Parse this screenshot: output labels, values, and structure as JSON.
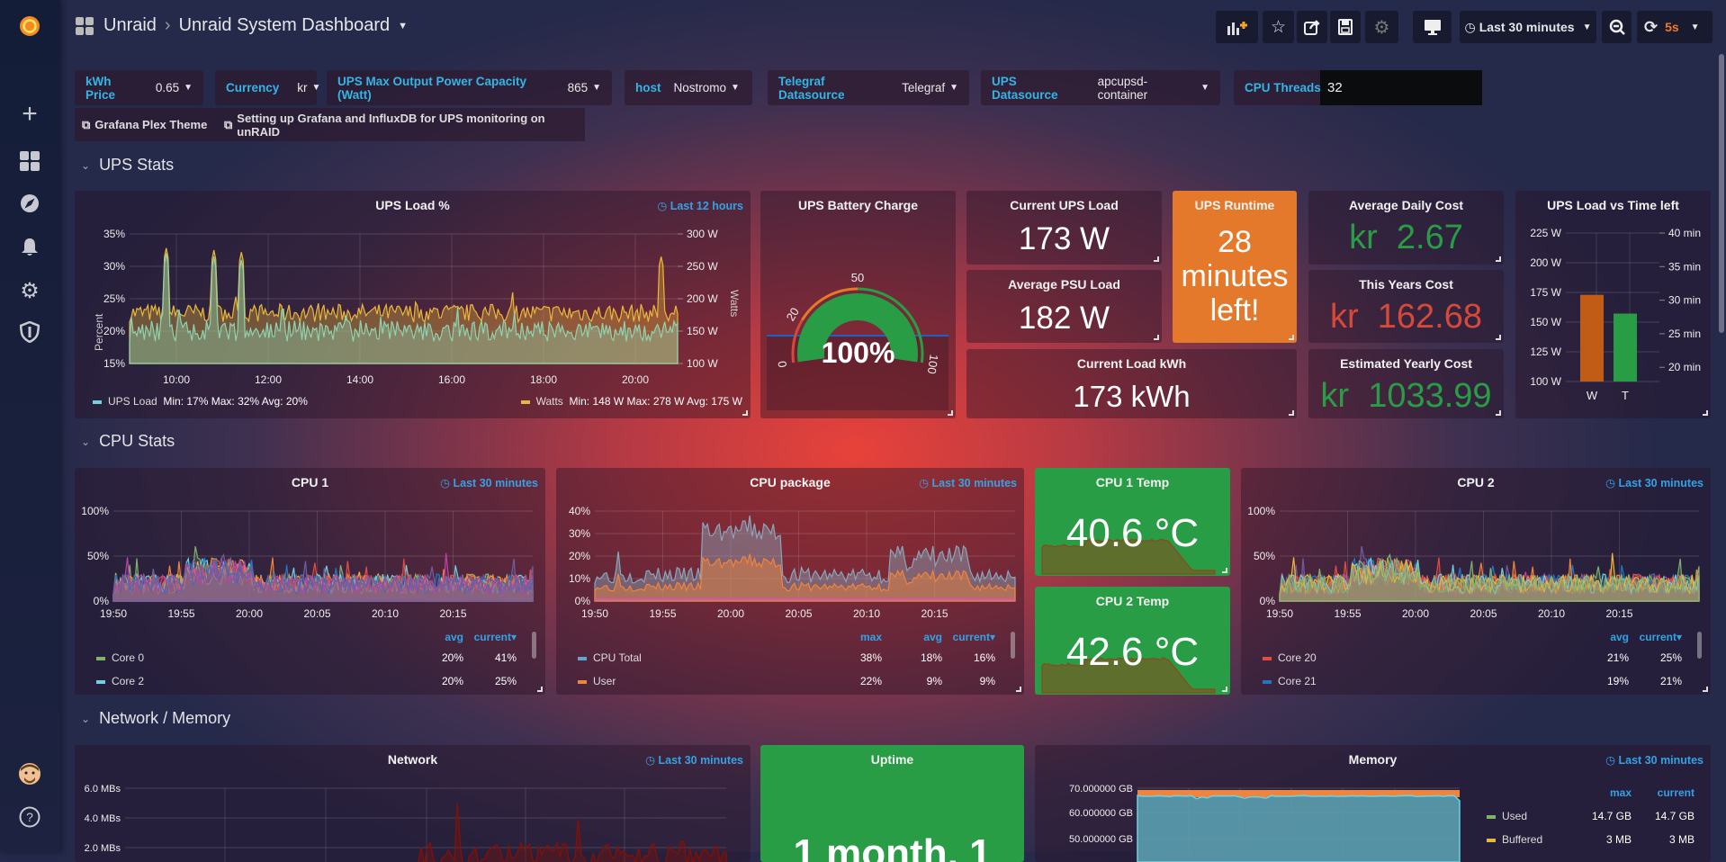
{
  "header": {
    "folder": "Unraid",
    "separator": "›",
    "dashboard_title": "Unraid System Dashboard",
    "time_range": "Last 30 minutes",
    "refresh_interval": "5s"
  },
  "variables": [
    {
      "label": "kWh Price",
      "value": "0.65"
    },
    {
      "label": "Currency",
      "value": "kr"
    },
    {
      "label": "UPS Max Output Power Capacity (Watt)",
      "value": "865"
    },
    {
      "label": "host",
      "value": "Nostromo"
    },
    {
      "label": "Telegraf Datasource",
      "value": "Telegraf"
    },
    {
      "label": "UPS Datasource",
      "value": "apcupsd-container"
    }
  ],
  "cpu_threads": {
    "label": "CPU Threads",
    "value": "32"
  },
  "links": [
    "Grafana Plex Theme",
    "Setting up Grafana and InfluxDB for UPS monitoring on unRAID"
  ],
  "rows": {
    "ups": "UPS Stats",
    "cpu": "CPU Stats",
    "net": "Network / Memory"
  },
  "panels": {
    "ups_load": {
      "title": "UPS Load %",
      "time": "Last 12 hours",
      "y_left_label": "Percent",
      "y_right_label": "Watts",
      "y_left_ticks": [
        "35%",
        "30%",
        "25%",
        "20%",
        "15%"
      ],
      "y_right_ticks": [
        "300 W",
        "250 W",
        "200 W",
        "150 W",
        "100 W"
      ],
      "x_ticks": [
        "10:00",
        "12:00",
        "14:00",
        "16:00",
        "18:00",
        "20:00"
      ],
      "legend": [
        {
          "name": "UPS Load",
          "stats": "Min: 17%  Max: 32%  Avg: 20%",
          "color": "#6ed0e0"
        },
        {
          "name": "Watts",
          "stats": "Min: 148 W  Max: 278 W  Avg: 175 W",
          "color": "#eab839"
        }
      ]
    },
    "battery": {
      "title": "UPS Battery Charge",
      "value": "100%",
      "percent": 100,
      "thresholds": [
        "0",
        "20",
        "50",
        "100"
      ]
    },
    "current_ups_load": {
      "title": "Current UPS Load",
      "value": "173 W"
    },
    "avg_psu_load": {
      "title": "Average PSU Load",
      "value": "182 W"
    },
    "current_load_kwh": {
      "title": "Current Load kWh",
      "value": "173 kWh"
    },
    "ups_runtime": {
      "title": "UPS Runtime",
      "lines": [
        "28",
        "minutes",
        "left!"
      ],
      "color": "#e5792b"
    },
    "avg_daily_cost": {
      "title": "Average Daily Cost",
      "unit": "kr",
      "value": "2.67",
      "color": "#299c46"
    },
    "this_years_cost": {
      "title": "This Years Cost",
      "unit": "kr",
      "value": "162.68",
      "color": "#d44a3a"
    },
    "est_yearly_cost": {
      "title": "Estimated Yearly Cost",
      "unit": "kr",
      "value": "1033.99",
      "color": "#299c46"
    },
    "ups_vs_time": {
      "title": "UPS Load vs Time left",
      "y_left_ticks": [
        "225 W",
        "200 W",
        "175 W",
        "150 W",
        "125 W",
        "100 W"
      ],
      "y_right_ticks": [
        "40 min",
        "35 min",
        "30 min",
        "25 min",
        "20 min"
      ],
      "bars": [
        {
          "label": "W",
          "value": 173,
          "unit": "W",
          "color": "#c15c17"
        },
        {
          "label": "T",
          "value": 28,
          "unit": "min",
          "color": "#299c46"
        }
      ]
    },
    "cpu1": {
      "title": "CPU 1",
      "time": "Last 30 minutes",
      "y_ticks": [
        "100%",
        "50%",
        "0%"
      ],
      "x_ticks": [
        "19:50",
        "19:55",
        "20:00",
        "20:05",
        "20:10",
        "20:15"
      ],
      "legend_headers": [
        "avg",
        "current▾"
      ],
      "legend": [
        {
          "name": "Core 0",
          "avg": "20%",
          "current": "41%",
          "color": "#7eb26d"
        },
        {
          "name": "Core 2",
          "avg": "20%",
          "current": "25%",
          "color": "#6ed0e0"
        }
      ]
    },
    "cpu_package": {
      "title": "CPU package",
      "time": "Last 30 minutes",
      "y_ticks": [
        "40%",
        "30%",
        "20%",
        "10%",
        "0%"
      ],
      "x_ticks": [
        "19:50",
        "19:55",
        "20:00",
        "20:05",
        "20:10",
        "20:15"
      ],
      "legend_headers": [
        "max",
        "avg",
        "current▾"
      ],
      "legend": [
        {
          "name": "CPU Total",
          "max": "38%",
          "avg": "18%",
          "current": "16%",
          "color": "#64a4c8"
        },
        {
          "name": "User",
          "max": "22%",
          "avg": "9%",
          "current": "9%",
          "color": "#ef843c"
        }
      ]
    },
    "cpu1_temp": {
      "title": "CPU 1 Temp",
      "value": "40.6 °C",
      "color": "#299c46"
    },
    "cpu2_temp": {
      "title": "CPU 2 Temp",
      "value": "42.6 °C",
      "color": "#299c46"
    },
    "cpu2": {
      "title": "CPU 2",
      "time": "Last 30 minutes",
      "y_ticks": [
        "100%",
        "50%",
        "0%"
      ],
      "x_ticks": [
        "19:50",
        "19:55",
        "20:00",
        "20:05",
        "20:10",
        "20:15"
      ],
      "legend_headers": [
        "avg",
        "current▾"
      ],
      "legend": [
        {
          "name": "Core 20",
          "avg": "21%",
          "current": "25%",
          "color": "#e24d42"
        },
        {
          "name": "Core 21",
          "avg": "19%",
          "current": "21%",
          "color": "#1f78c1"
        }
      ]
    },
    "network": {
      "title": "Network",
      "time": "Last 30 minutes",
      "y_ticks": [
        "6.0 MBs",
        "4.0 MBs",
        "2.0 MBs"
      ]
    },
    "uptime": {
      "title": "Uptime",
      "value": "1 month, 1",
      "color": "#299c46"
    },
    "memory": {
      "title": "Memory",
      "time": "Last 30 minutes",
      "y_ticks": [
        "70.000000 GB",
        "60.000000 GB",
        "50.000000 GB"
      ],
      "legend_headers": [
        "max",
        "current"
      ],
      "legend": [
        {
          "name": "Used",
          "max": "14.7 GB",
          "current": "14.7 GB",
          "color": "#7eb26d"
        },
        {
          "name": "Buffered",
          "max": "3 MB",
          "current": "3 MB",
          "color": "#eab839"
        }
      ]
    }
  }
}
